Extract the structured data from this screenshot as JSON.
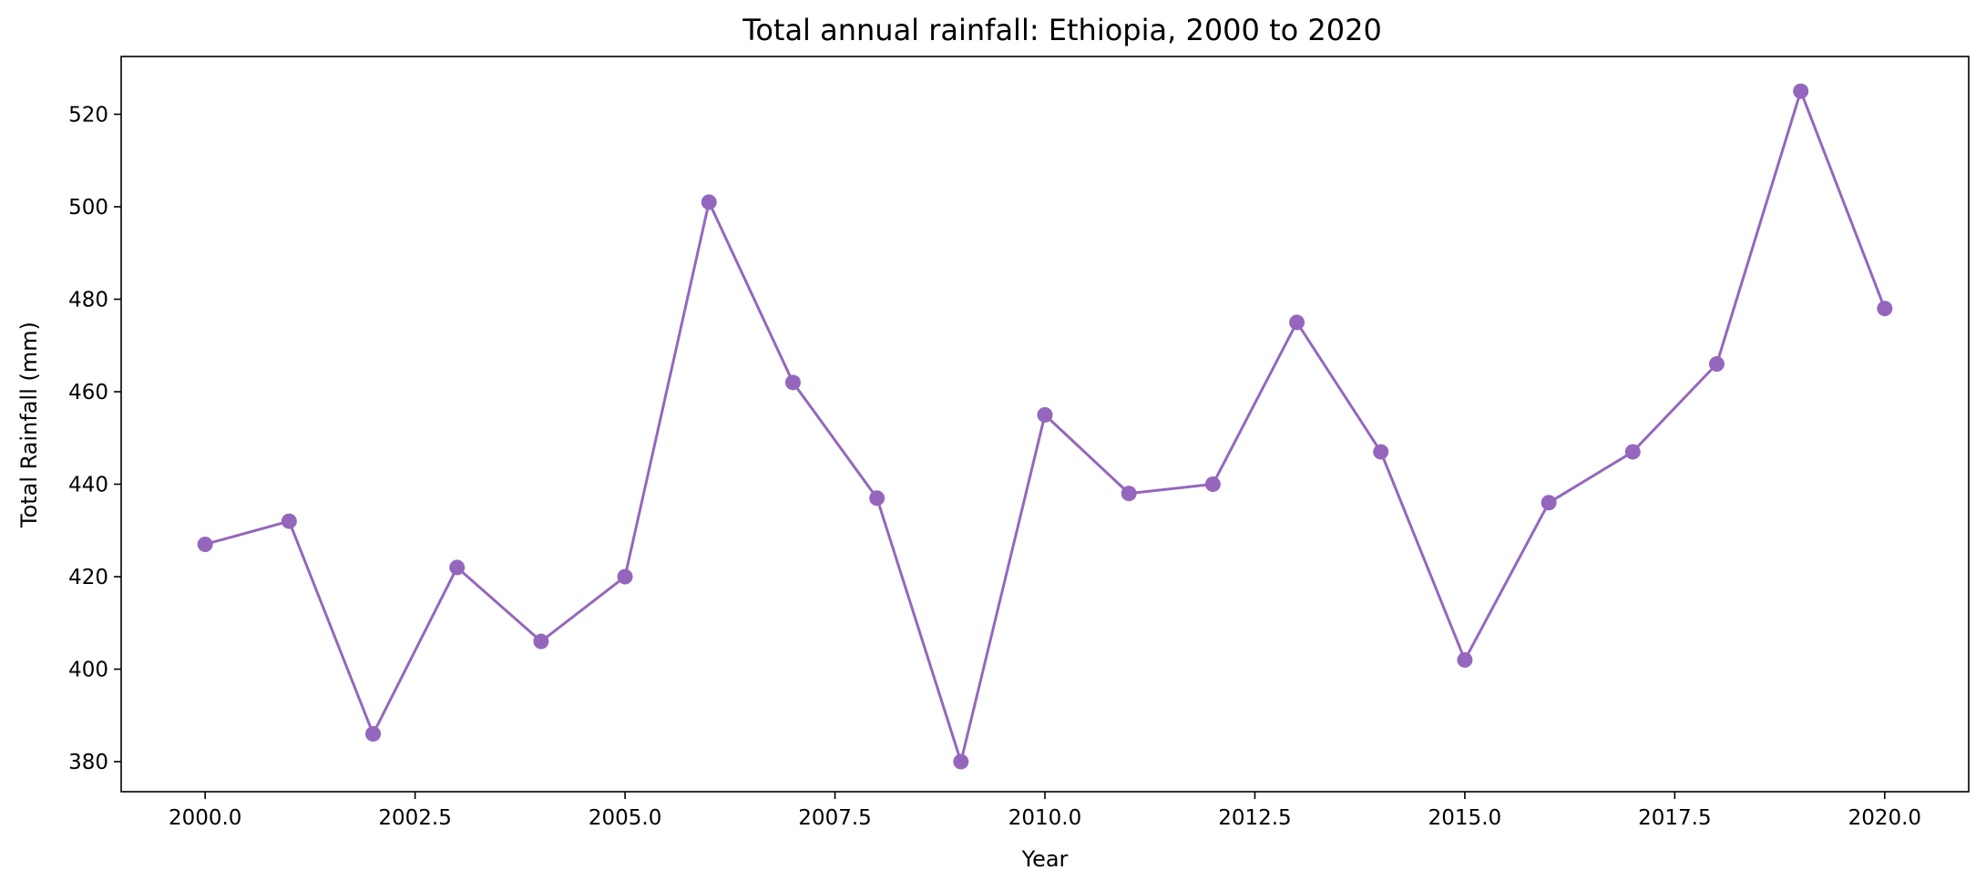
{
  "chart_data": {
    "type": "line",
    "title": "Total annual rainfall: Ethiopia, 2000 to 2020",
    "xlabel": "Year",
    "ylabel": "Total Rainfall (mm)",
    "x": [
      2000,
      2001,
      2002,
      2003,
      2004,
      2005,
      2006,
      2007,
      2008,
      2009,
      2010,
      2011,
      2012,
      2013,
      2014,
      2015,
      2016,
      2017,
      2018,
      2019,
      2020
    ],
    "series": [
      {
        "values": [
          427,
          432,
          386,
          422,
          406,
          420,
          501,
          462,
          437,
          380,
          455,
          438,
          440,
          475,
          447,
          402,
          436,
          447,
          466,
          525,
          478
        ],
        "color": "#9467bd",
        "marker": "circle"
      }
    ],
    "xlim": [
      1999,
      2021
    ],
    "ylim": [
      373.5,
      532.5
    ],
    "xticks": [
      "2000.0",
      "2002.5",
      "2005.0",
      "2007.5",
      "2010.0",
      "2012.5",
      "2015.0",
      "2017.5",
      "2020.0"
    ],
    "yticks": [
      "380",
      "400",
      "420",
      "440",
      "460",
      "480",
      "500",
      "520"
    ],
    "grid": false,
    "legend": false
  }
}
